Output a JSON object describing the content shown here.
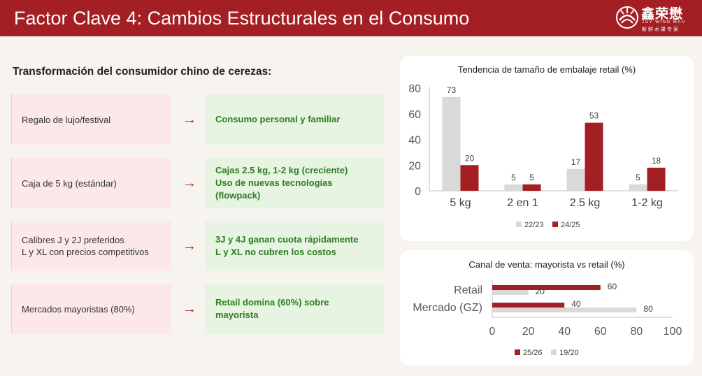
{
  "header": {
    "title": "Factor Clave 4: Cambios Estructurales en el Consumo"
  },
  "logo": {
    "name": "鑫荣懋",
    "name_en": "JOY WING MAU",
    "subtitle": "新鲜水果专家"
  },
  "section_title": "Transformación del consumidor chino de cerezas:",
  "rows": [
    {
      "from": "Regalo de lujo/festival",
      "to": "Consumo personal y familiar"
    },
    {
      "from": "Caja de 5 kg (estándar)",
      "to": "Cajas 2.5 kg, 1-2 kg (creciente)\nUso de nuevas tecnologías\n(flowpack)"
    },
    {
      "from": "Calibres J y 2J preferidos\nL y XL con precios competitivos",
      "to": "3J y 4J ganan cuota rápidamente\nL y XL no cubren los costos"
    },
    {
      "from": "Mercados mayoristas (80%)",
      "to": "Retail domina (60%) sobre\nmayorista"
    }
  ],
  "arrow_glyph": "→",
  "colors": {
    "accent": "#a31f24",
    "grey": "#d9d9d9",
    "green_text": "#2e7d22",
    "left_bg": "#fce8e8",
    "right_bg": "#e6f4e1"
  },
  "chart_data": [
    {
      "type": "bar",
      "title": "Tendencia de tamaño de embalaje retail (%)",
      "categories": [
        "5 kg",
        "2 en 1",
        "2.5 kg",
        "1-2 kg"
      ],
      "series": [
        {
          "name": "22/23",
          "values": [
            73,
            5,
            17,
            5
          ],
          "color": "#d9d9d9"
        },
        {
          "name": "24/25",
          "values": [
            20,
            5,
            53,
            18
          ],
          "color": "#a31f24"
        }
      ],
      "ylim": [
        0,
        80
      ],
      "yticks": [
        0,
        20,
        40,
        60,
        80
      ],
      "legend": "bottom",
      "grid": false
    },
    {
      "type": "bar",
      "orientation": "horizontal",
      "title": "Canal de venta: mayorista vs retail (%)",
      "categories": [
        "Retail",
        "Mercado (GZ)"
      ],
      "series": [
        {
          "name": "25/26",
          "values": [
            60,
            40
          ],
          "color": "#a31f24"
        },
        {
          "name": "19/20",
          "values": [
            20,
            80
          ],
          "color": "#d9d9d9"
        }
      ],
      "xlim": [
        0,
        100
      ],
      "xticks": [
        0,
        20,
        40,
        60,
        80,
        100
      ],
      "legend": "bottom",
      "grid": false
    }
  ]
}
